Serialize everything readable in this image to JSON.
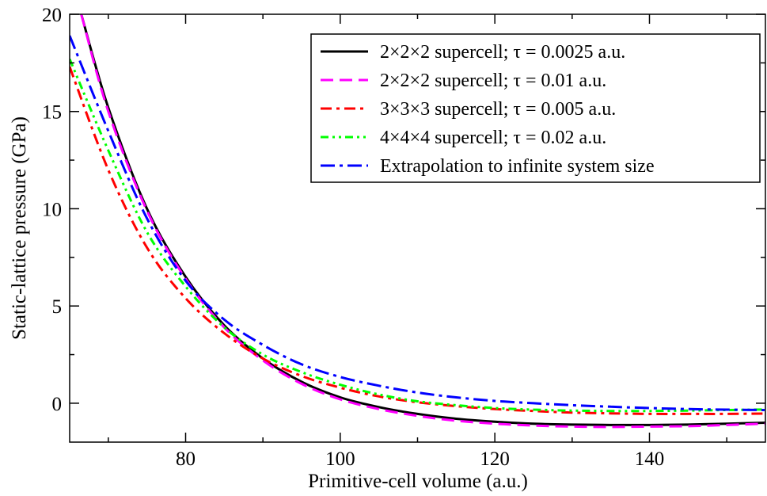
{
  "chart_data": {
    "type": "line",
    "title": "",
    "xlabel": "Primitive-cell volume (a.u.)",
    "ylabel": "Static-lattice pressure (GPa)",
    "xlim": [
      65,
      155
    ],
    "ylim": [
      -2,
      20
    ],
    "x_ticks": [
      80,
      100,
      120,
      140
    ],
    "y_ticks": [
      0,
      5,
      10,
      15,
      20
    ],
    "grid": false,
    "legend_position": "top-right",
    "series": [
      {
        "name": "2×2×2 supercell; τ = 0.0025 a.u.",
        "color": "#000000",
        "dash": "solid",
        "x": [
          66.5,
          70,
          75,
          80,
          85,
          90,
          95,
          100,
          105,
          110,
          115,
          120,
          125,
          130,
          135,
          140,
          145,
          150,
          155
        ],
        "y": [
          20,
          15.2,
          10.0,
          6.5,
          4.0,
          2.3,
          1.1,
          0.3,
          -0.2,
          -0.55,
          -0.8,
          -0.95,
          -1.05,
          -1.1,
          -1.12,
          -1.12,
          -1.1,
          -1.05,
          -1.0
        ]
      },
      {
        "name": "2×2×2 supercell; τ = 0.01 a.u.",
        "color": "#ff00ff",
        "dash": "dashed",
        "x": [
          66.5,
          70,
          75,
          80,
          85,
          90,
          95,
          100,
          105,
          110,
          115,
          120,
          125,
          130,
          135,
          140,
          145,
          150,
          155
        ],
        "y": [
          20,
          15.0,
          9.9,
          6.4,
          3.9,
          2.2,
          1.0,
          0.2,
          -0.3,
          -0.65,
          -0.9,
          -1.05,
          -1.15,
          -1.2,
          -1.22,
          -1.2,
          -1.18,
          -1.12,
          -1.05
        ]
      },
      {
        "name": "3×3×3 supercell; τ = 0.005 a.u.",
        "color": "#ff0000",
        "dash": "dashdot",
        "x": [
          65,
          70,
          75,
          80,
          85,
          90,
          95,
          100,
          105,
          110,
          115,
          120,
          125,
          130,
          135,
          140,
          145,
          150,
          155
        ],
        "y": [
          17.3,
          12.0,
          8.0,
          5.4,
          3.6,
          2.3,
          1.4,
          0.8,
          0.35,
          0.05,
          -0.15,
          -0.3,
          -0.4,
          -0.48,
          -0.52,
          -0.55,
          -0.55,
          -0.55,
          -0.53
        ]
      },
      {
        "name": "4×4×4 supercell; τ = 0.02 a.u.",
        "color": "#00ff00",
        "dash": "dashdotdot",
        "x": [
          65,
          70,
          75,
          80,
          85,
          90,
          95,
          100,
          105,
          110,
          115,
          120,
          125,
          130,
          135,
          140,
          145,
          150,
          155
        ],
        "y": [
          17.7,
          13.0,
          8.8,
          6.0,
          3.9,
          2.5,
          1.6,
          0.95,
          0.45,
          0.1,
          -0.1,
          -0.25,
          -0.33,
          -0.38,
          -0.4,
          -0.4,
          -0.38,
          -0.35,
          -0.32
        ]
      },
      {
        "name": "Extrapolation to infinite system size",
        "color": "#0000ff",
        "dash": "longdashdot",
        "x": [
          65,
          70,
          75,
          80,
          85,
          90,
          95,
          100,
          105,
          110,
          115,
          120,
          125,
          130,
          135,
          140,
          145,
          150,
          155
        ],
        "y": [
          18.9,
          14.0,
          9.5,
          6.3,
          4.3,
          3.0,
          2.0,
          1.35,
          0.9,
          0.55,
          0.3,
          0.12,
          0.0,
          -0.1,
          -0.18,
          -0.25,
          -0.3,
          -0.33,
          -0.35
        ]
      }
    ]
  }
}
